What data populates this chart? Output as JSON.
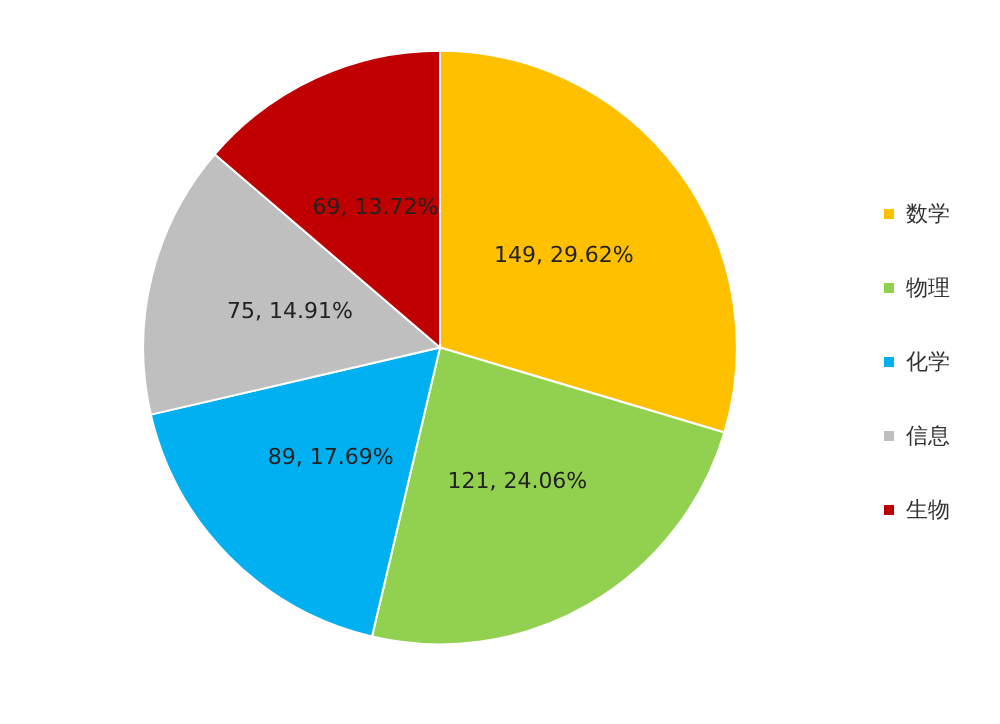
{
  "chart_data": {
    "type": "pie",
    "categories": [
      "数学",
      "物理",
      "化学",
      "信息",
      "生物"
    ],
    "values": [
      149,
      121,
      89,
      75,
      69
    ],
    "colors": [
      "#ffc000",
      "#92d050",
      "#00b0f0",
      "#bfbfbf",
      "#c00000"
    ],
    "value_labels": [
      "149, 29.62%",
      "121, 24.06%",
      "89, 17.69%",
      "75, 14.91%",
      "69, 13.72%"
    ],
    "legend": "right"
  }
}
